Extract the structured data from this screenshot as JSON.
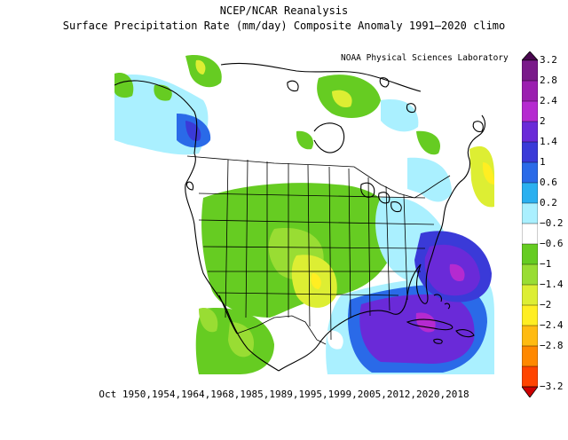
{
  "title_line1": "NCEP/NCAR Reanalysis",
  "title_line2": "Surface Precipitation Rate (mm/day) Composite Anomaly 1991–2020 climo",
  "credit": "NOAA Physical Sciences Laboratory",
  "caption": "Oct 1950,1954,1964,1968,1985,1989,1995,1999,2005,2012,2020,2018",
  "colorbar": {
    "labels": [
      "3.2",
      "2.8",
      "2.4",
      "2",
      "1.4",
      "1",
      "0.6",
      "0.2",
      "−0.2",
      "−0.6",
      "−1",
      "−1.4",
      "−2",
      "−2.4",
      "−2.8",
      "−3.2"
    ],
    "colors": [
      "#4a0850",
      "#7a1a8a",
      "#9b1fb0",
      "#b52ad0",
      "#6a2ad8",
      "#3a3ad8",
      "#2a6ae8",
      "#2ab0f0",
      "#aaf0ff",
      "#ffffff",
      "#66cc22",
      "#99dd33",
      "#ddee33",
      "#ffee22",
      "#ffbb11",
      "#ff8800",
      "#ff4400",
      "#cc0000"
    ]
  },
  "map": {
    "colors": {
      "land": "#ffffff",
      "wet_strong": "#6a2ad8",
      "wet_medium": "#3a3ad8",
      "wet_light": "#2a6ae8",
      "wet_faint": "#aaf0ff",
      "dry_light": "#66cc22",
      "dry_medium": "#99dd33",
      "dry_yellow": "#ddee33",
      "dry_orange": "#ffee22",
      "coast": "#000000"
    }
  }
}
